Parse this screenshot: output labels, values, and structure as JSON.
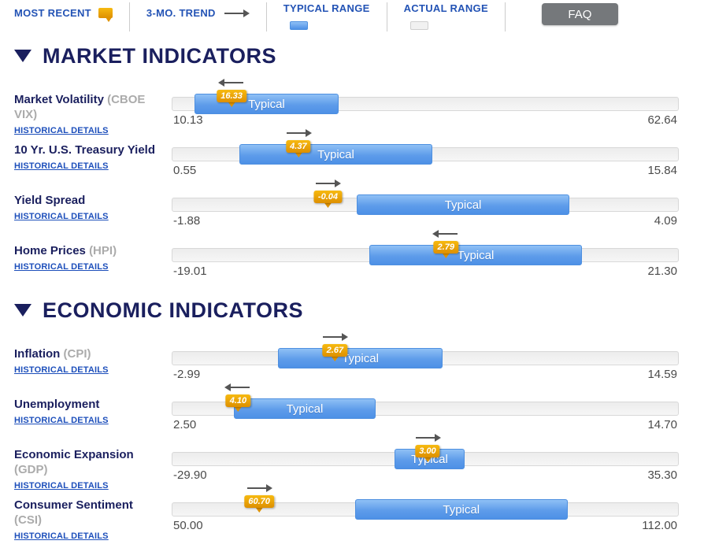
{
  "legend": {
    "most_recent_label": "MOST RECENT",
    "trend_label": "3-MO. TREND",
    "typical_range_label": "TYPICAL RANGE",
    "actual_range_label": "ACTUAL RANGE",
    "faq_label": "FAQ"
  },
  "colors": {
    "navy": "#1A1F5E",
    "legend_blue": "#2353B5",
    "link_blue": "#1D4FBB",
    "band_blue": "#5193E8",
    "badge_orange": "#EFA008",
    "track_gray": "#F1F1F1",
    "faq_gray": "#75787B",
    "arrow_gray": "#555555",
    "minmax_gray": "#4A4A4A",
    "paren_gray": "#ABABAB"
  },
  "sections": [
    {
      "title": "MARKET INDICATORS",
      "indicators": [
        {
          "name": "Market Volatility",
          "paren": "(CBOE VIX)",
          "link_label": "HISTORICAL DETAILS",
          "band_label": "Typical",
          "min": 10.13,
          "max": 62.64,
          "min_label": "10.13",
          "max_label": "62.64",
          "value": 16.33,
          "value_label": "16.33",
          "typical_low": 12.5,
          "typical_high": 27.4,
          "trend": "down"
        },
        {
          "name": "10 Yr. U.S. Treasury Yield",
          "paren": "",
          "link_label": "HISTORICAL DETAILS",
          "band_label": "Typical",
          "min": 0.55,
          "max": 15.84,
          "min_label": "0.55",
          "max_label": "15.84",
          "value": 4.37,
          "value_label": "4.37",
          "typical_low": 2.6,
          "typical_high": 8.4,
          "trend": "up"
        },
        {
          "name": "Yield Spread",
          "paren": "",
          "link_label": "HISTORICAL DETAILS",
          "band_label": "Typical",
          "min": -1.88,
          "max": 4.09,
          "min_label": "-1.88",
          "max_label": "4.09",
          "value": -0.04,
          "value_label": "-0.04",
          "typical_low": 0.3,
          "typical_high": 2.8,
          "trend": "up"
        },
        {
          "name": "Home Prices",
          "paren": "(HPI)",
          "link_label": "HISTORICAL DETAILS",
          "band_label": "Typical",
          "min": -19.01,
          "max": 21.3,
          "min_label": "-19.01",
          "max_label": "21.30",
          "value": 2.79,
          "value_label": "2.79",
          "typical_low": -3.3,
          "typical_high": 13.6,
          "trend": "down"
        }
      ]
    },
    {
      "title": "ECONOMIC INDICATORS",
      "indicators": [
        {
          "name": "Inflation",
          "paren": "(CPI)",
          "link_label": "HISTORICAL DETAILS",
          "band_label": "Typical",
          "min": -2.99,
          "max": 14.59,
          "min_label": "-2.99",
          "max_label": "14.59",
          "value": 2.67,
          "value_label": "2.67",
          "typical_low": 0.7,
          "typical_high": 6.4,
          "trend": "up"
        },
        {
          "name": "Unemployment",
          "paren": "",
          "link_label": "HISTORICAL DETAILS",
          "band_label": "Typical",
          "min": 2.5,
          "max": 14.7,
          "min_label": "2.50",
          "max_label": "14.70",
          "value": 4.1,
          "value_label": "4.10",
          "typical_low": 4.0,
          "typical_high": 7.4,
          "trend": "down"
        },
        {
          "name": "Economic Expansion",
          "paren": "(GDP)",
          "link_label": "HISTORICAL DETAILS",
          "band_label": "Typical",
          "min": -29.9,
          "max": 35.3,
          "min_label": "-29.90",
          "max_label": "35.30",
          "value": 3.0,
          "value_label": "3.00",
          "typical_low": -1.3,
          "typical_high": 7.8,
          "trend": "up"
        },
        {
          "name": "Consumer Sentiment",
          "paren": "(CSI)",
          "link_label": "HISTORICAL DETAILS",
          "band_label": "Typical",
          "min": 50.0,
          "max": 112.0,
          "min_label": "50.00",
          "max_label": "112.00",
          "value": 60.7,
          "value_label": "60.70",
          "typical_low": 72.4,
          "typical_high": 98.4,
          "trend": "up"
        }
      ]
    }
  ]
}
